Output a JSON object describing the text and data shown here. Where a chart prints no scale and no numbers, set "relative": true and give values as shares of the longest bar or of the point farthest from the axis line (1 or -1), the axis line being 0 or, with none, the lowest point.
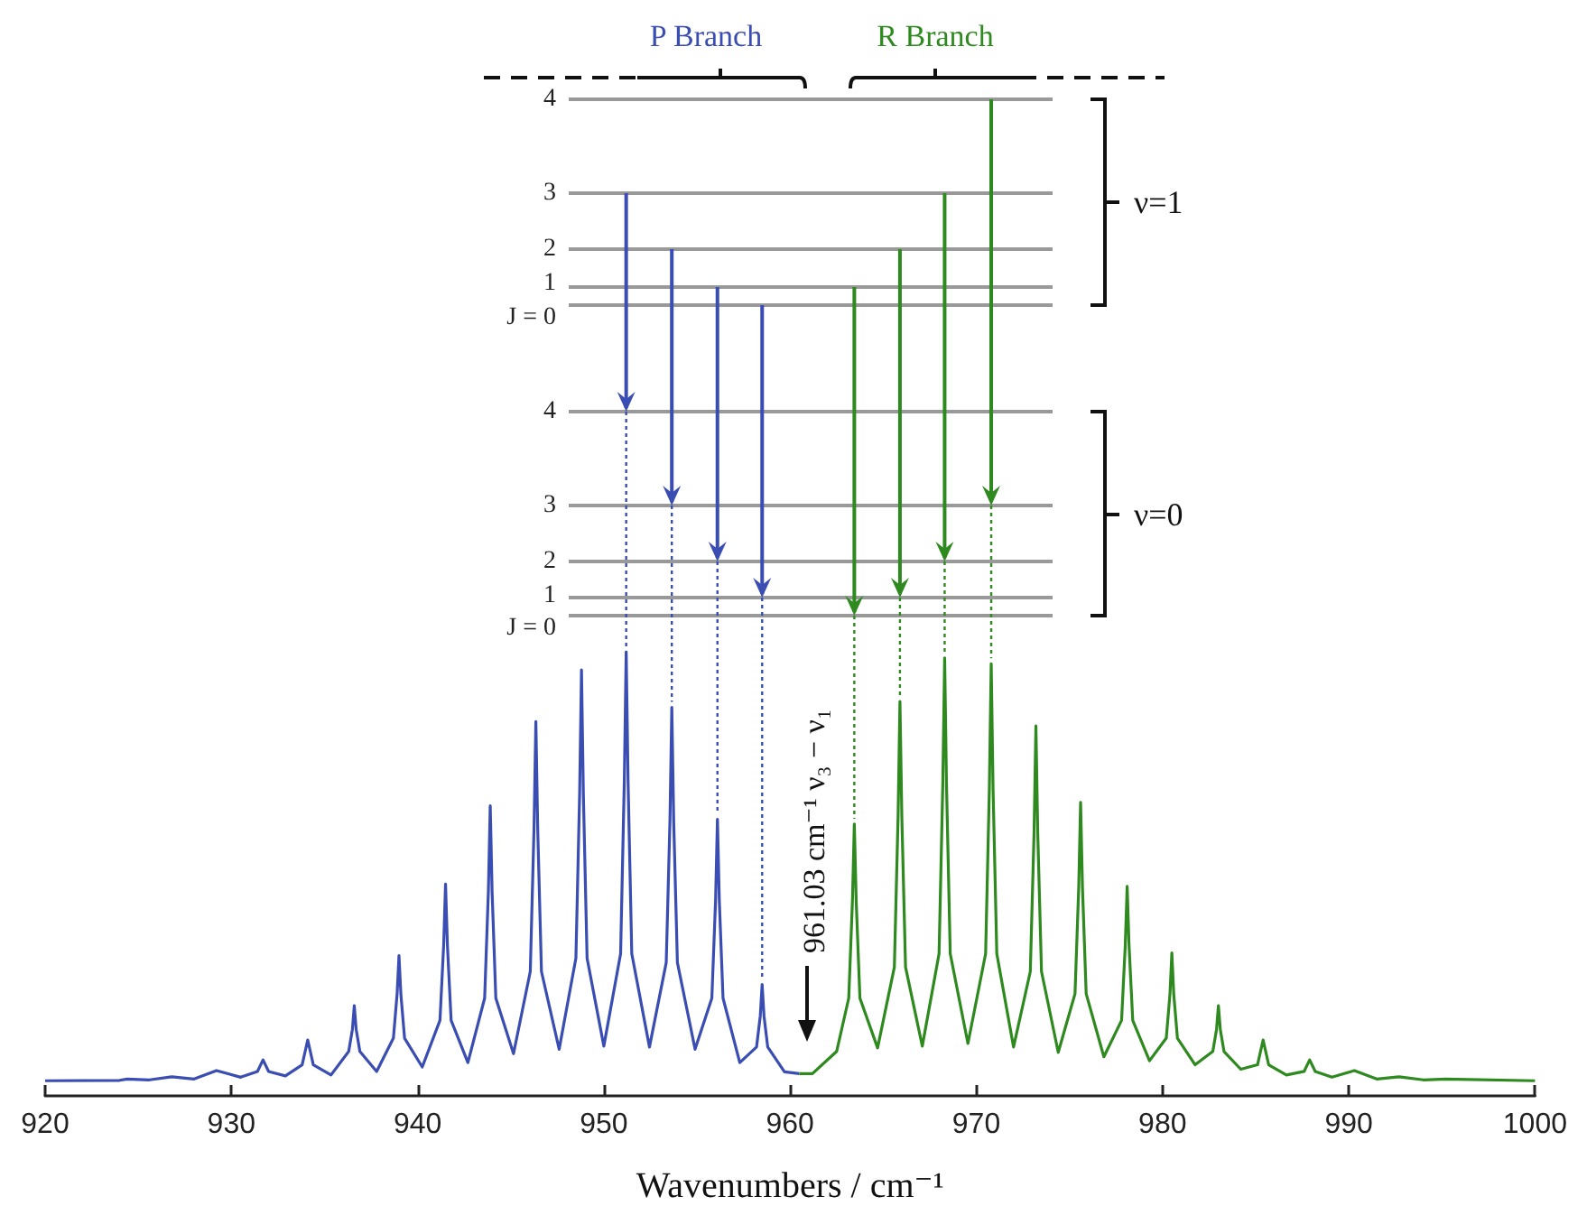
{
  "chart_data": {
    "type": "line",
    "xlabel": "Wavenumbers / cm⁻¹",
    "relative": true,
    "tick_labels": "x",
    "marker": "none",
    "xlim": [
      920,
      1000
    ],
    "xticks": [
      920,
      930,
      940,
      950,
      960,
      970,
      980,
      990,
      1000
    ],
    "annotations": [
      "P Branch",
      "R Branch",
      "ν=1",
      "ν=0",
      "4",
      "3",
      "2",
      "1",
      "J = 0",
      "4",
      "3",
      "2",
      "1",
      "J = 0",
      "961.03 cm⁻¹ ν₃ − ν₁"
    ],
    "series": [
      {
        "color": "#3a4db3",
        "x": [
          920,
          924.0,
          924.4,
          925.6,
          926.8,
          928.0,
          929.2,
          930.5,
          931.4,
          931.7,
          932.0,
          932.9,
          933.8,
          934.1,
          934.4,
          935.35,
          936.3,
          936.5,
          936.6,
          936.7,
          936.9,
          937.8,
          938.7,
          938.9,
          939.0,
          939.1,
          939.3,
          940.25,
          941.2,
          941.4,
          941.5,
          941.6,
          941.8,
          942.7,
          943.6,
          943.8,
          943.9,
          944.0,
          944.2,
          945.15,
          946.05,
          946.25,
          946.35,
          946.45,
          946.65,
          947.6,
          948.5,
          948.7,
          948.8,
          948.9,
          949.1,
          950.0,
          950.9,
          951.1,
          951.2,
          951.3,
          951.5,
          952.45,
          953.35,
          953.55,
          953.65,
          953.75,
          953.95,
          954.9,
          955.8,
          956.0,
          956.1,
          956.2,
          956.4,
          957.3,
          958.2,
          958.4,
          958.5,
          958.6,
          958.8,
          959.7,
          960.5
        ],
        "values": [
          0.034,
          0.035,
          0.038,
          0.036,
          0.043,
          0.038,
          0.057,
          0.042,
          0.055,
          0.081,
          0.055,
          0.045,
          0.07,
          0.126,
          0.07,
          0.047,
          0.1,
          0.15,
          0.203,
          0.15,
          0.1,
          0.055,
          0.13,
          0.23,
          0.316,
          0.23,
          0.13,
          0.065,
          0.17,
          0.34,
          0.477,
          0.34,
          0.17,
          0.075,
          0.22,
          0.46,
          0.653,
          0.46,
          0.22,
          0.095,
          0.28,
          0.6,
          0.843,
          0.6,
          0.28,
          0.105,
          0.31,
          0.68,
          0.959,
          0.68,
          0.31,
          0.112,
          0.32,
          0.71,
          1.0,
          0.71,
          0.32,
          0.11,
          0.3,
          0.62,
          0.875,
          0.62,
          0.3,
          0.105,
          0.22,
          0.44,
          0.623,
          0.44,
          0.22,
          0.075,
          0.11,
          0.18,
          0.251,
          0.18,
          0.11,
          0.054,
          0.05
        ]
      },
      {
        "color": "#2e8a1f",
        "x": [
          960.5,
          961.2,
          962.5,
          963.15,
          963.35,
          963.45,
          963.55,
          963.75,
          964.7,
          965.6,
          965.8,
          965.9,
          966.0,
          966.2,
          967.1,
          968.0,
          968.2,
          968.3,
          968.4,
          968.6,
          969.55,
          970.5,
          970.7,
          970.8,
          970.9,
          971.1,
          972.0,
          972.9,
          973.1,
          973.2,
          973.3,
          973.5,
          974.4,
          975.3,
          975.5,
          975.6,
          975.7,
          975.9,
          976.85,
          977.8,
          978.0,
          978.1,
          978.2,
          978.4,
          979.3,
          980.2,
          980.4,
          980.5,
          980.6,
          980.8,
          981.75,
          982.7,
          982.9,
          983.0,
          983.1,
          983.3,
          984.2,
          985.1,
          985.4,
          985.7,
          986.65,
          987.6,
          987.9,
          988.2,
          989.1,
          990.3,
          991.5,
          992.7,
          994.0,
          995.2,
          1000
        ],
        "values": [
          0.05,
          0.05,
          0.1,
          0.22,
          0.44,
          0.612,
          0.44,
          0.22,
          0.108,
          0.29,
          0.63,
          0.888,
          0.63,
          0.29,
          0.112,
          0.32,
          0.7,
          0.986,
          0.7,
          0.32,
          0.118,
          0.32,
          0.69,
          0.973,
          0.69,
          0.32,
          0.11,
          0.28,
          0.59,
          0.833,
          0.59,
          0.28,
          0.098,
          0.23,
          0.47,
          0.661,
          0.47,
          0.23,
          0.088,
          0.17,
          0.34,
          0.472,
          0.34,
          0.17,
          0.079,
          0.13,
          0.23,
          0.322,
          0.23,
          0.13,
          0.07,
          0.1,
          0.15,
          0.203,
          0.15,
          0.1,
          0.06,
          0.07,
          0.126,
          0.07,
          0.047,
          0.055,
          0.081,
          0.055,
          0.042,
          0.057,
          0.038,
          0.043,
          0.036,
          0.038,
          0.034
        ]
      }
    ]
  }
}
